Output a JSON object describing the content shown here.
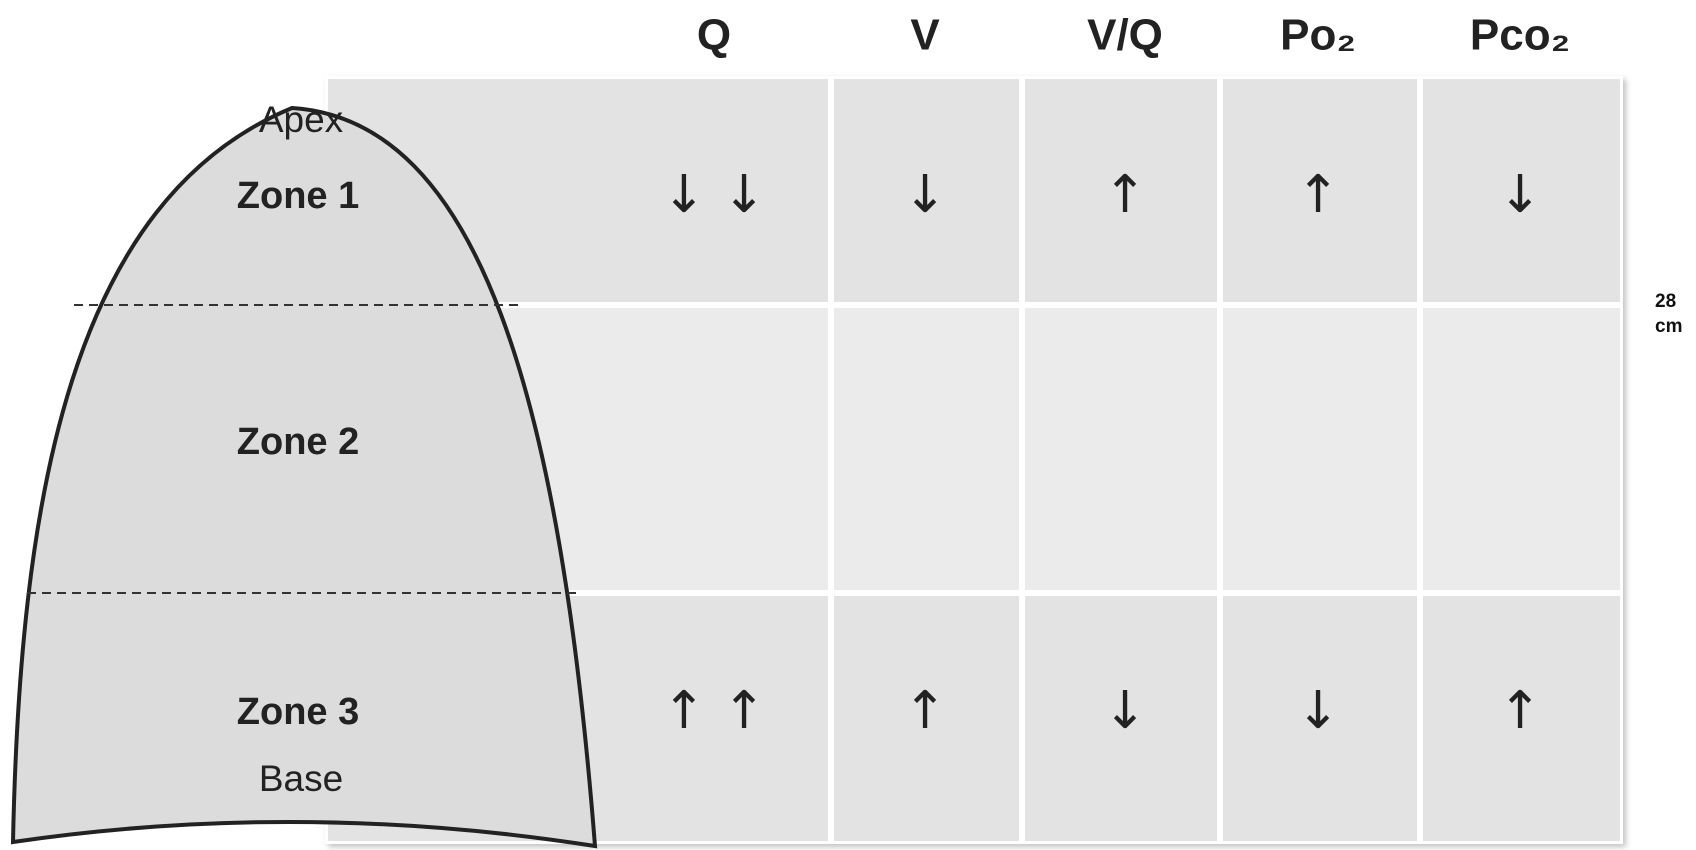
{
  "header": {
    "columns": [
      "Q",
      "V",
      "V/Q",
      "Po₂",
      "Pco₂"
    ]
  },
  "lung": {
    "apex": "Apex",
    "base": "Base"
  },
  "table": {
    "rows": [
      {
        "zone": "Zone 1",
        "cells": [
          "↓ ↓",
          "↓",
          "↑",
          "↑",
          "↓"
        ]
      },
      {
        "zone": "Zone 2"
      },
      {
        "zone": "Zone 3",
        "cells": [
          "↑ ↑",
          "↑",
          "↓",
          "↓",
          "↑"
        ]
      }
    ]
  },
  "side_label": "28 cm"
}
